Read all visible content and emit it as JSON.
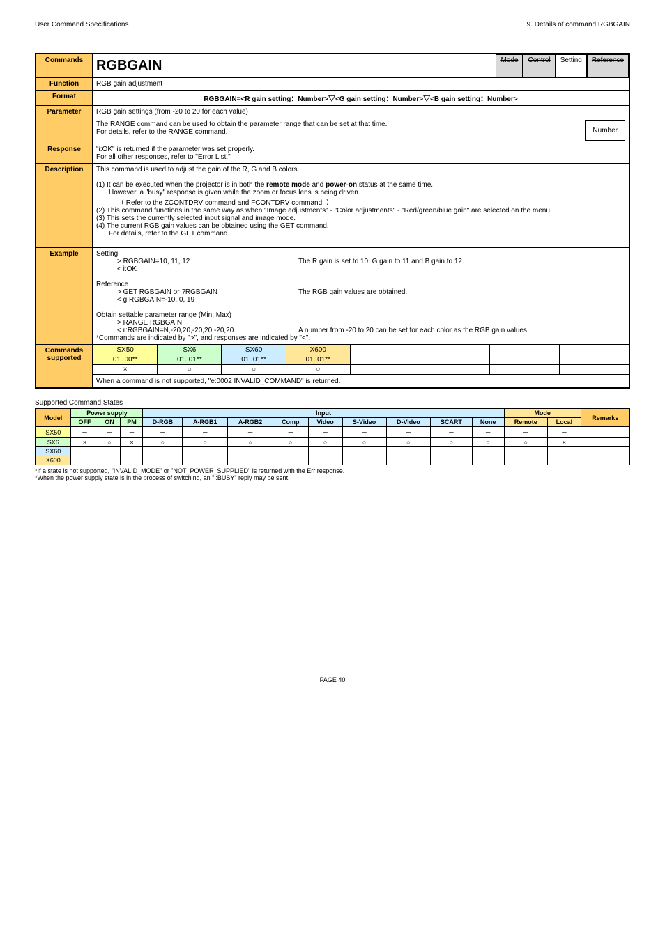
{
  "header": {
    "left": "User Command Specifications",
    "right": "9. Details of command RGBGAIN"
  },
  "cmd": {
    "labels": {
      "commands": "Commands",
      "function": "Function",
      "format": "Format",
      "parameter": "Parameter",
      "response": "Response",
      "description": "Description",
      "example": "Example",
      "commands_supported": "Commands supported"
    },
    "name": "RGBGAIN",
    "tags": {
      "mode": "Mode",
      "control": "Control",
      "setting": "Setting",
      "reference": "Reference"
    },
    "function": "RGB gain adjustment",
    "format": "RGBGAIN=<R gain setting：Number>▽<G gain setting：Number>▽<B gain setting：Number>",
    "parameter": {
      "line1": "RGB gain settings (from -20 to 20 for each value)",
      "line2": "The RANGE command can be used to obtain the parameter range that can be set at that time.",
      "line3": "For details, refer to the RANGE command.",
      "numberLabel": "Number"
    },
    "response": {
      "line1": "\"i:OK\" is returned if the parameter was set properly.",
      "line2": "For all other responses, refer to \"Error List.\""
    },
    "description": {
      "intro": "This command is used to adjust the gain of the R, G and B colors.",
      "p1a": "(1) It can be executed when the projector is in both the ",
      "p1b": "remote mode",
      "p1c": " and ",
      "p1d": "power-on",
      "p1e": " status at the same time.",
      "p1f": "However, a \"busy\" response is given while the zoom or focus lens is being driven.",
      "p1g": "（ Refer to the ZCONTDRV command and FCONTDRV command. ）",
      "p2": "(2) This command functions in the same way as when \"Image adjustments\" - \"Color adjustments\" - \"Red/green/blue gain\" are selected on the menu.",
      "p3": "(3) This sets the currently selected input signal and image mode.",
      "p4a": "(4) The current RGB gain values can be obtained using the GET command.",
      "p4b": "For details, refer to the GET command."
    },
    "example": {
      "settingLabel": "Setting",
      "set1": "> RGBGAIN=10, 11, 12",
      "set1note": "The R gain is set to 10, G gain to 11 and B gain to 12.",
      "set2": "< i:OK",
      "refLabel": "Reference",
      "ref1": "> GET RGBGAIN or ?RGBGAIN",
      "ref1note": "The RGB gain values are obtained.",
      "ref2": "< g:RGBGAIN=-10, 0, 19",
      "rangeLabel": "Obtain settable parameter range (Min, Max)",
      "range1": "> RANGE RGBGAIN",
      "range2": "< r:RGBGAIN=N,-20,20,-20,20,-20,20",
      "range2note": "A number from -20 to 20 can be set for each color as the RGB gain values.",
      "footnote": "*Commands are indicated by \">\", and responses are indicated by \"<\"."
    },
    "supported": {
      "h": [
        "SX50",
        "SX6",
        "SX60",
        "X600"
      ],
      "r1": [
        "01. 00**",
        "01. 01**",
        "01. 01**",
        "01. 01**"
      ],
      "r2": [
        "×",
        "○",
        "○",
        "○"
      ],
      "note": "When a command is not supported, \"e:0002 INVALID_COMMAND\" is returned."
    }
  },
  "states": {
    "title": "Supported Command States",
    "headers": {
      "model": "Model",
      "power": "Power supply",
      "input": "Input",
      "mode": "Mode",
      "remarks": "Remarks",
      "off": "OFF",
      "on": "ON",
      "pm": "PM",
      "drgb": "D-RGB",
      "argb1": "A-RGB1",
      "argb2": "A-RGB2",
      "comp": "Comp",
      "video": "Video",
      "svideo": "S-Video",
      "dvideo": "D-Video",
      "scart": "SCART",
      "none": "None",
      "remote": "Remote",
      "local": "Local"
    },
    "rows": [
      {
        "model": "SX50",
        "cells": [
          "－",
          "－",
          "－",
          "－",
          "－",
          "－",
          "－",
          "－",
          "－",
          "－",
          "－",
          "－",
          "－",
          "－",
          ""
        ]
      },
      {
        "model": "SX6",
        "cells": [
          "×",
          "○",
          "×",
          "○",
          "○",
          "○",
          "○",
          "○",
          "○",
          "○",
          "○",
          "○",
          "○",
          "×",
          ""
        ]
      },
      {
        "model": "SX60",
        "cells": [
          "",
          "",
          "",
          "",
          "",
          "",
          "",
          "",
          "",
          "",
          "",
          "",
          "",
          "",
          ""
        ]
      },
      {
        "model": "X600",
        "cells": [
          "",
          "",
          "",
          "",
          "",
          "",
          "",
          "",
          "",
          "",
          "",
          "",
          "",
          "",
          ""
        ]
      }
    ],
    "foot1": "*If a state is not supported, \"INVALID_MODE\" or \"NOT_POWER_SUPPLIED\" is returned with the Err response.",
    "foot2": "*When the power supply state is in the process of switching, an \"i:BUSY\" reply may be sent."
  },
  "footer": "PAGE 40"
}
